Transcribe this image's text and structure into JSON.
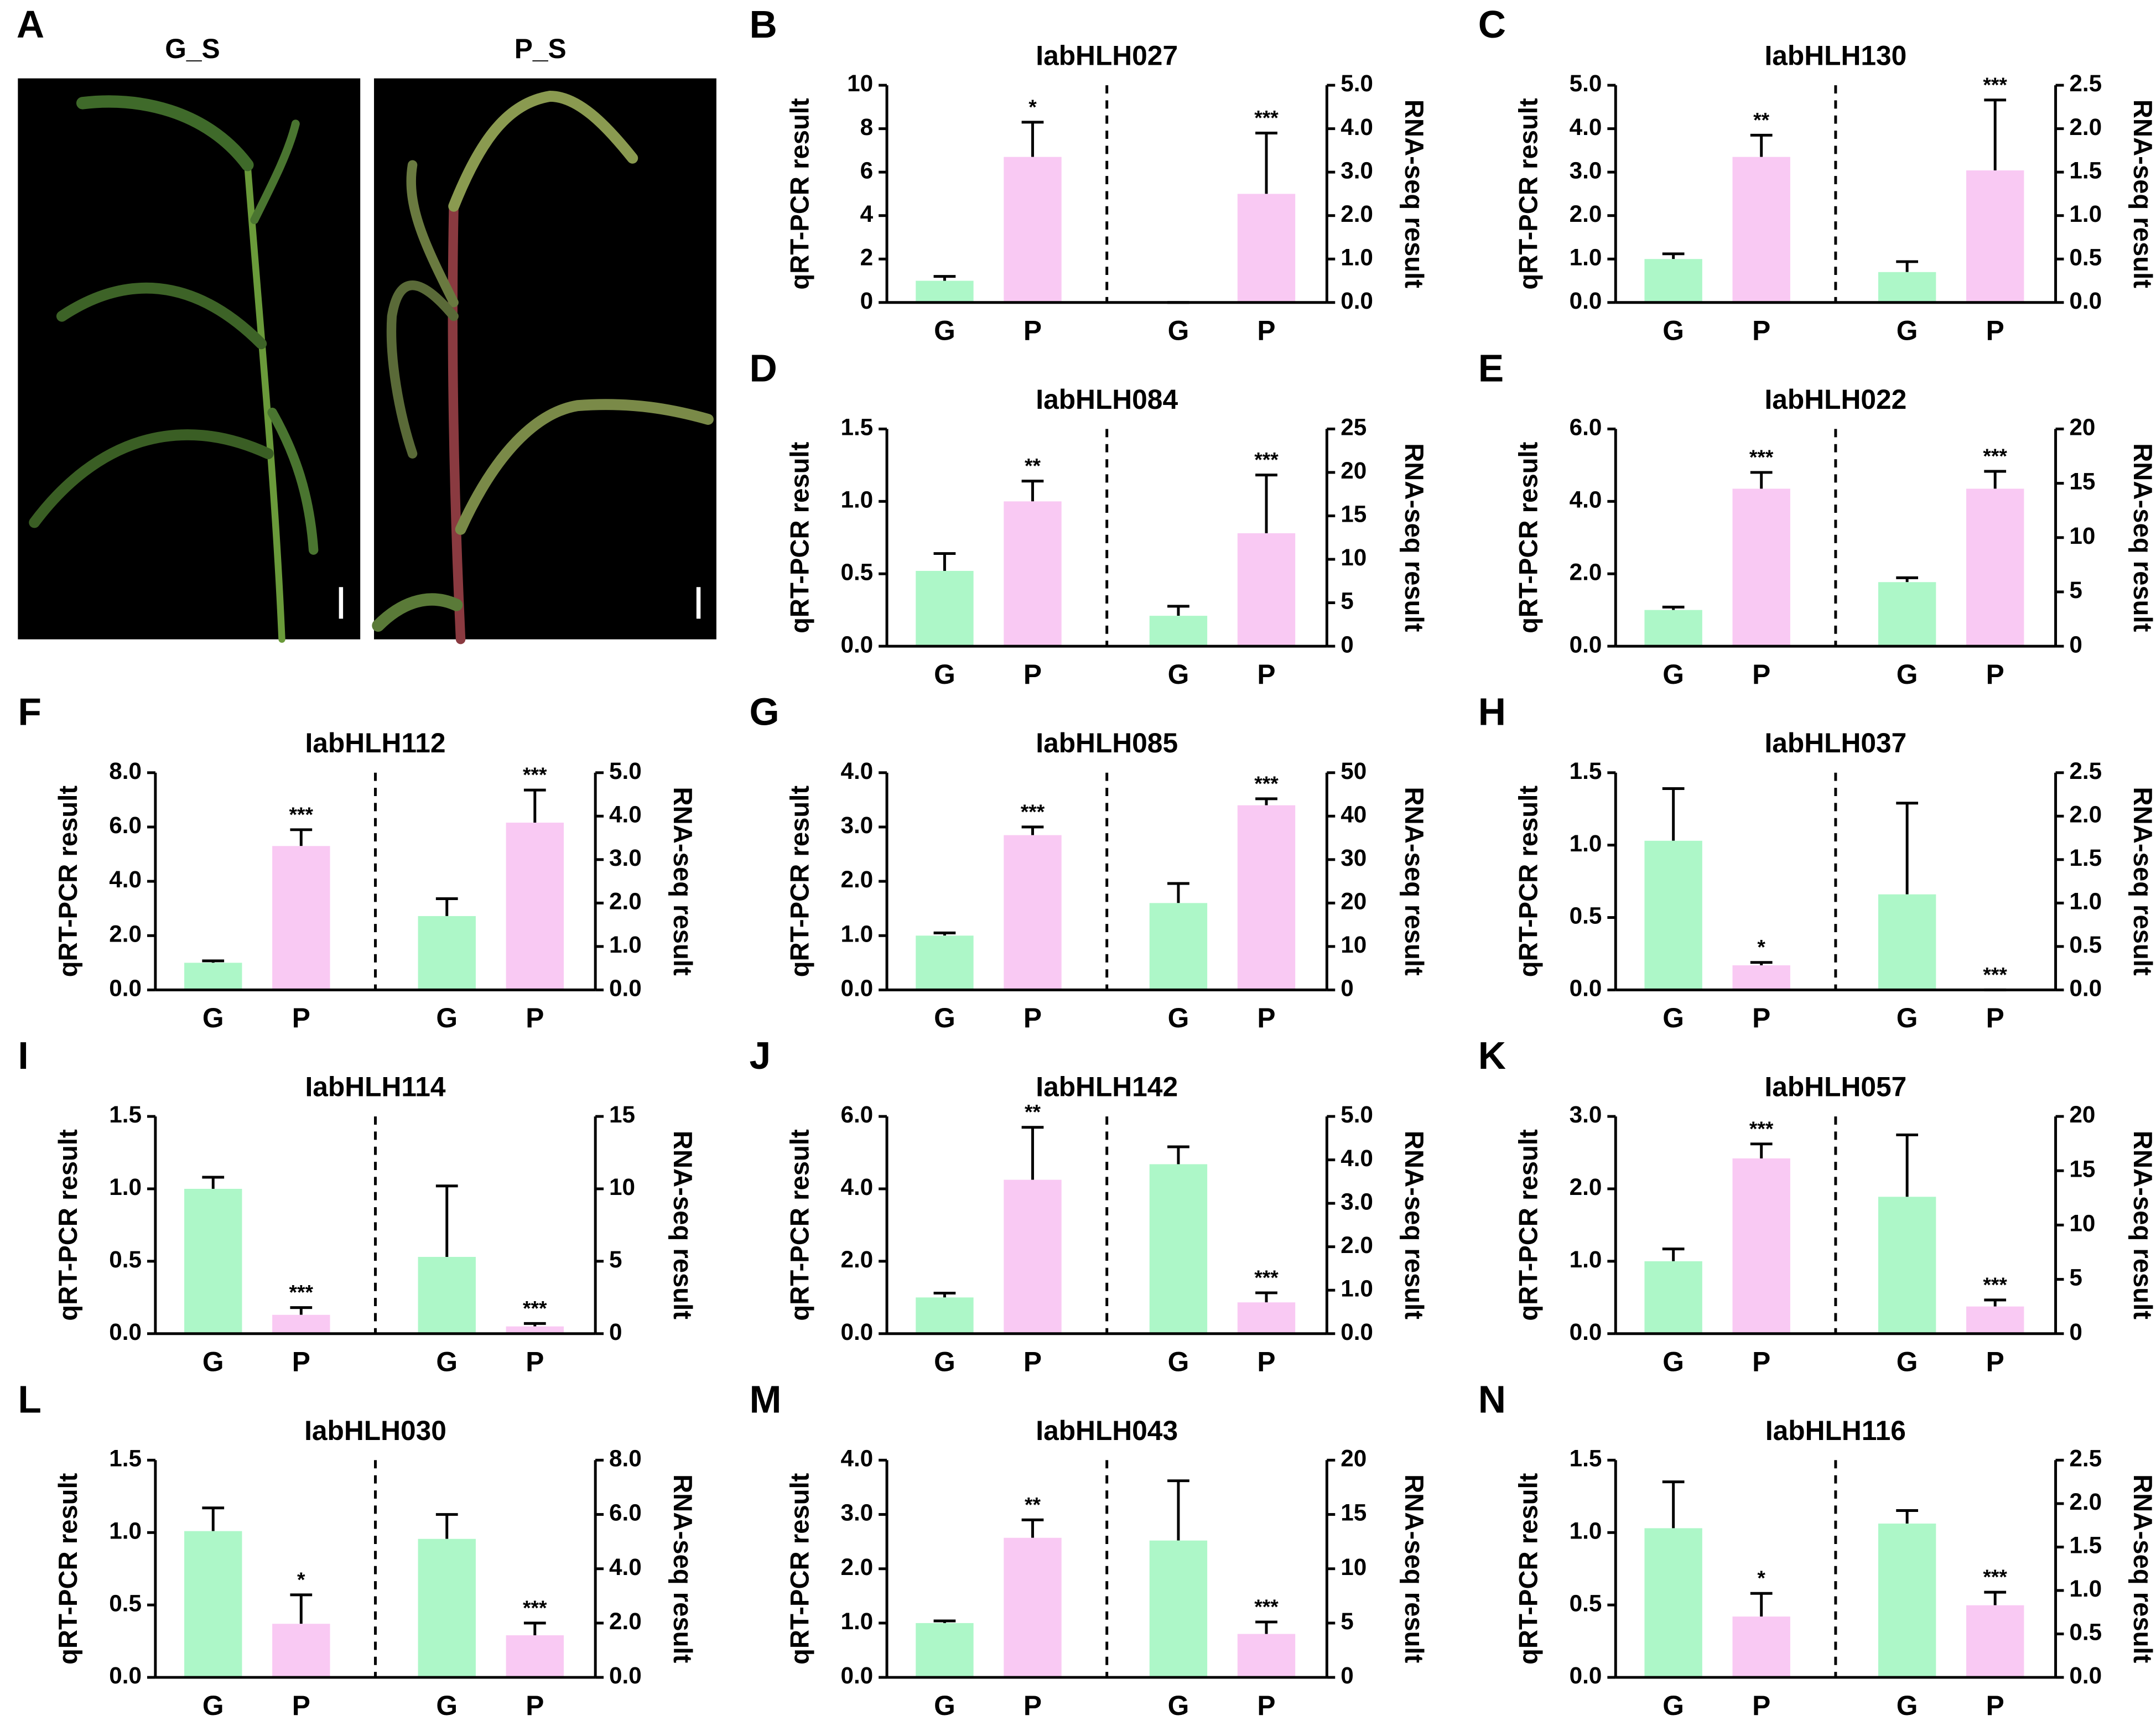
{
  "photo_panel": {
    "panel_label": "A",
    "labels": [
      "G_S",
      "P_S"
    ]
  },
  "chart_data": [
    {
      "type": "bar",
      "panel_label": "B",
      "title": "IabHLH027",
      "ylabel": "qRT-PCR result",
      "y2label": "RNA-seq result",
      "colors": [
        "#adf7c8",
        "#f9c9f3"
      ],
      "ylim": [
        0,
        10
      ],
      "yticks": [
        0,
        2,
        4,
        6,
        8,
        10
      ],
      "y2lim": [
        0,
        5
      ],
      "y2ticks": [
        {
          "value": 0,
          "label": "0.0"
        },
        {
          "value": 1,
          "label": "1.0"
        },
        {
          "value": 2,
          "label": "2.0"
        },
        {
          "value": 3,
          "label": "3.0"
        },
        {
          "value": 4,
          "label": "4.0"
        },
        {
          "value": 5,
          "label": "5.0"
        }
      ],
      "groups": [
        {
          "axis": "y",
          "categories": [
            "G",
            "P"
          ],
          "values": [
            1.0,
            6.7
          ],
          "errors": [
            0.2,
            1.6
          ],
          "annotations": [
            null,
            "*"
          ]
        },
        {
          "axis": "y2",
          "categories": [
            "G",
            "P"
          ],
          "values": [
            0,
            2.5
          ],
          "errors": [
            0,
            1.4
          ],
          "annotations": [
            null,
            "***"
          ]
        }
      ]
    },
    {
      "type": "bar",
      "panel_label": "C",
      "title": "IabHLH130",
      "ylabel": "qRT-PCR result",
      "y2label": "RNA-seq result",
      "colors": [
        "#adf7c8",
        "#f9c9f3"
      ],
      "ylim": [
        0,
        5
      ],
      "yticks": [
        {
          "value": 0,
          "label": "0.0"
        },
        {
          "value": 1,
          "label": "1.0"
        },
        {
          "value": 2,
          "label": "2.0"
        },
        {
          "value": 3,
          "label": "3.0"
        },
        {
          "value": 4,
          "label": "4.0"
        },
        {
          "value": 5,
          "label": "5.0"
        }
      ],
      "y2lim": [
        0,
        2.5
      ],
      "y2ticks": [
        {
          "value": 0,
          "label": "0.0"
        },
        0.5,
        {
          "value": 1,
          "label": "1.0"
        },
        1.5,
        {
          "value": 2,
          "label": "2.0"
        },
        2.5
      ],
      "groups": [
        {
          "axis": "y",
          "categories": [
            "G",
            "P"
          ],
          "values": [
            1.0,
            3.35
          ],
          "errors": [
            0.12,
            0.5
          ],
          "annotations": [
            null,
            "**"
          ]
        },
        {
          "axis": "y2",
          "categories": [
            "G",
            "P"
          ],
          "values": [
            0.35,
            1.52
          ],
          "errors": [
            0.12,
            0.81
          ],
          "annotations": [
            null,
            "***"
          ]
        }
      ]
    },
    {
      "type": "bar",
      "panel_label": "D",
      "title": "IabHLH084",
      "ylabel": "qRT-PCR result",
      "y2label": "RNA-seq result",
      "colors": [
        "#adf7c8",
        "#f9c9f3"
      ],
      "ylim": [
        0,
        1.5
      ],
      "yticks": [
        {
          "value": 0,
          "label": "0.0"
        },
        0.5,
        {
          "value": 1,
          "label": "1.0"
        },
        1.5
      ],
      "y2lim": [
        0,
        25
      ],
      "y2ticks": [
        0,
        5,
        10,
        15,
        20,
        25
      ],
      "groups": [
        {
          "axis": "y",
          "categories": [
            "G",
            "P"
          ],
          "values": [
            0.52,
            1.0
          ],
          "errors": [
            0.12,
            0.14
          ],
          "annotations": [
            null,
            "**"
          ]
        },
        {
          "axis": "y2",
          "categories": [
            "G",
            "P"
          ],
          "values": [
            3.5,
            13
          ],
          "errors": [
            1.1,
            6.7
          ],
          "annotations": [
            null,
            "***"
          ]
        }
      ]
    },
    {
      "type": "bar",
      "panel_label": "E",
      "title": "IabHLH022",
      "ylabel": "qRT-PCR result",
      "y2label": "RNA-seq result",
      "colors": [
        "#adf7c8",
        "#f9c9f3"
      ],
      "ylim": [
        0,
        6
      ],
      "yticks": [
        {
          "value": 0,
          "label": "0.0"
        },
        {
          "value": 2,
          "label": "2.0"
        },
        {
          "value": 4,
          "label": "4.0"
        },
        {
          "value": 6,
          "label": "6.0"
        }
      ],
      "y2lim": [
        0,
        20
      ],
      "y2ticks": [
        0,
        5,
        10,
        15,
        20
      ],
      "groups": [
        {
          "axis": "y",
          "categories": [
            "G",
            "P"
          ],
          "values": [
            1.0,
            4.35
          ],
          "errors": [
            0.08,
            0.45
          ],
          "annotations": [
            null,
            "***"
          ]
        },
        {
          "axis": "y2",
          "categories": [
            "G",
            "P"
          ],
          "values": [
            5.9,
            14.5
          ],
          "errors": [
            0.4,
            1.6
          ],
          "annotations": [
            null,
            "***"
          ]
        }
      ]
    },
    {
      "type": "bar",
      "panel_label": "F",
      "title": "IabHLH112",
      "ylabel": "qRT-PCR result",
      "y2label": "RNA-seq result",
      "colors": [
        "#adf7c8",
        "#f9c9f3"
      ],
      "ylim": [
        0,
        8
      ],
      "yticks": [
        {
          "value": 0,
          "label": "0.0"
        },
        {
          "value": 2,
          "label": "2.0"
        },
        {
          "value": 4,
          "label": "4.0"
        },
        {
          "value": 6,
          "label": "6.0"
        },
        {
          "value": 8,
          "label": "8.0"
        }
      ],
      "y2lim": [
        0,
        5
      ],
      "y2ticks": [
        {
          "value": 0,
          "label": "0.0"
        },
        {
          "value": 1,
          "label": "1.0"
        },
        {
          "value": 2,
          "label": "2.0"
        },
        {
          "value": 3,
          "label": "3.0"
        },
        {
          "value": 4,
          "label": "4.0"
        },
        {
          "value": 5,
          "label": "5.0"
        }
      ],
      "groups": [
        {
          "axis": "y",
          "categories": [
            "G",
            "P"
          ],
          "values": [
            1.0,
            5.3
          ],
          "errors": [
            0.07,
            0.6
          ],
          "annotations": [
            null,
            "***"
          ]
        },
        {
          "axis": "y2",
          "categories": [
            "G",
            "P"
          ],
          "values": [
            1.7,
            3.85
          ],
          "errors": [
            0.4,
            0.75
          ],
          "annotations": [
            null,
            "***"
          ]
        }
      ]
    },
    {
      "type": "bar",
      "panel_label": "G",
      "title": "IabHLH085",
      "ylabel": "qRT-PCR result",
      "y2label": "RNA-seq result",
      "colors": [
        "#adf7c8",
        "#f9c9f3"
      ],
      "ylim": [
        0,
        4
      ],
      "yticks": [
        {
          "value": 0,
          "label": "0.0"
        },
        {
          "value": 1,
          "label": "1.0"
        },
        {
          "value": 2,
          "label": "2.0"
        },
        {
          "value": 3,
          "label": "3.0"
        },
        {
          "value": 4,
          "label": "4.0"
        }
      ],
      "y2lim": [
        0,
        50
      ],
      "y2ticks": [
        0,
        10,
        20,
        30,
        40,
        50
      ],
      "groups": [
        {
          "axis": "y",
          "categories": [
            "G",
            "P"
          ],
          "values": [
            1.0,
            2.85
          ],
          "errors": [
            0.05,
            0.15
          ],
          "annotations": [
            null,
            "***"
          ]
        },
        {
          "axis": "y2",
          "categories": [
            "G",
            "P"
          ],
          "values": [
            20,
            42.5
          ],
          "errors": [
            4.5,
            1.5
          ],
          "annotations": [
            null,
            "***"
          ]
        }
      ]
    },
    {
      "type": "bar",
      "panel_label": "H",
      "title": "IabHLH037",
      "ylabel": "qRT-PCR result",
      "y2label": "RNA-seq result",
      "colors": [
        "#adf7c8",
        "#f9c9f3"
      ],
      "ylim": [
        0,
        1.5
      ],
      "yticks": [
        {
          "value": 0,
          "label": "0.0"
        },
        0.5,
        {
          "value": 1,
          "label": "1.0"
        },
        1.5
      ],
      "y2lim": [
        0,
        2.5
      ],
      "y2ticks": [
        {
          "value": 0,
          "label": "0.0"
        },
        0.5,
        {
          "value": 1,
          "label": "1.0"
        },
        1.5,
        {
          "value": 2,
          "label": "2.0"
        },
        2.5
      ],
      "groups": [
        {
          "axis": "y",
          "categories": [
            "G",
            "P"
          ],
          "values": [
            1.03,
            0.17
          ],
          "errors": [
            0.36,
            0.02
          ],
          "annotations": [
            null,
            "*"
          ]
        },
        {
          "axis": "y2",
          "categories": [
            "G",
            "P"
          ],
          "values": [
            1.1,
            0
          ],
          "errors": [
            1.05,
            0
          ],
          "annotations": [
            null,
            "***"
          ]
        }
      ]
    },
    {
      "type": "bar",
      "panel_label": "I",
      "title": "IabHLH114",
      "ylabel": "qRT-PCR result",
      "y2label": "RNA-seq result",
      "colors": [
        "#adf7c8",
        "#f9c9f3"
      ],
      "ylim": [
        0,
        1.5
      ],
      "yticks": [
        {
          "value": 0,
          "label": "0.0"
        },
        0.5,
        {
          "value": 1,
          "label": "1.0"
        },
        1.5
      ],
      "y2lim": [
        0,
        15
      ],
      "y2ticks": [
        0,
        5,
        10,
        15
      ],
      "groups": [
        {
          "axis": "y",
          "categories": [
            "G",
            "P"
          ],
          "values": [
            1.0,
            0.13
          ],
          "errors": [
            0.08,
            0.05
          ],
          "annotations": [
            null,
            "***"
          ]
        },
        {
          "axis": "y2",
          "categories": [
            "G",
            "P"
          ],
          "values": [
            5.3,
            0.5
          ],
          "errors": [
            4.9,
            0.2
          ],
          "annotations": [
            null,
            "***"
          ]
        }
      ]
    },
    {
      "type": "bar",
      "panel_label": "J",
      "title": "IabHLH142",
      "ylabel": "qRT-PCR result",
      "y2label": "RNA-seq result",
      "colors": [
        "#adf7c8",
        "#f9c9f3"
      ],
      "ylim": [
        0,
        6
      ],
      "yticks": [
        {
          "value": 0,
          "label": "0.0"
        },
        {
          "value": 2,
          "label": "2.0"
        },
        {
          "value": 4,
          "label": "4.0"
        },
        {
          "value": 6,
          "label": "6.0"
        }
      ],
      "y2lim": [
        0,
        5
      ],
      "y2ticks": [
        {
          "value": 0,
          "label": "0.0"
        },
        {
          "value": 1,
          "label": "1.0"
        },
        {
          "value": 2,
          "label": "2.0"
        },
        {
          "value": 3,
          "label": "3.0"
        },
        {
          "value": 4,
          "label": "4.0"
        },
        {
          "value": 5,
          "label": "5.0"
        }
      ],
      "groups": [
        {
          "axis": "y",
          "categories": [
            "G",
            "P"
          ],
          "values": [
            1.0,
            4.25
          ],
          "errors": [
            0.12,
            1.45
          ],
          "annotations": [
            null,
            "**"
          ]
        },
        {
          "axis": "y2",
          "categories": [
            "G",
            "P"
          ],
          "values": [
            3.9,
            0.72
          ],
          "errors": [
            0.4,
            0.22
          ],
          "annotations": [
            null,
            "***"
          ]
        }
      ]
    },
    {
      "type": "bar",
      "panel_label": "K",
      "title": "IabHLH057",
      "ylabel": "qRT-PCR result",
      "y2label": "RNA-seq result",
      "colors": [
        "#adf7c8",
        "#f9c9f3"
      ],
      "ylim": [
        0,
        3
      ],
      "yticks": [
        {
          "value": 0,
          "label": "0.0"
        },
        {
          "value": 1,
          "label": "1.0"
        },
        {
          "value": 2,
          "label": "2.0"
        },
        {
          "value": 3,
          "label": "3.0"
        }
      ],
      "y2lim": [
        0,
        20
      ],
      "y2ticks": [
        0,
        5,
        10,
        15,
        20
      ],
      "groups": [
        {
          "axis": "y",
          "categories": [
            "G",
            "P"
          ],
          "values": [
            1.0,
            2.42
          ],
          "errors": [
            0.17,
            0.2
          ],
          "annotations": [
            null,
            "***"
          ]
        },
        {
          "axis": "y2",
          "categories": [
            "G",
            "P"
          ],
          "values": [
            12.6,
            2.5
          ],
          "errors": [
            5.7,
            0.6
          ],
          "annotations": [
            null,
            "***"
          ]
        }
      ]
    },
    {
      "type": "bar",
      "panel_label": "L",
      "title": "IabHLH030",
      "ylabel": "qRT-PCR result",
      "y2label": "RNA-seq result",
      "colors": [
        "#adf7c8",
        "#f9c9f3"
      ],
      "ylim": [
        0,
        1.5
      ],
      "yticks": [
        {
          "value": 0,
          "label": "0.0"
        },
        0.5,
        {
          "value": 1,
          "label": "1.0"
        },
        1.5
      ],
      "y2lim": [
        0,
        8
      ],
      "y2ticks": [
        {
          "value": 0,
          "label": "0.0"
        },
        {
          "value": 2,
          "label": "2.0"
        },
        {
          "value": 4,
          "label": "4.0"
        },
        {
          "value": 6,
          "label": "6.0"
        },
        {
          "value": 8,
          "label": "8.0"
        }
      ],
      "groups": [
        {
          "axis": "y",
          "categories": [
            "G",
            "P"
          ],
          "values": [
            1.01,
            0.37
          ],
          "errors": [
            0.16,
            0.2
          ],
          "annotations": [
            null,
            "*"
          ]
        },
        {
          "axis": "y2",
          "categories": [
            "G",
            "P"
          ],
          "values": [
            5.1,
            1.55
          ],
          "errors": [
            0.9,
            0.45
          ],
          "annotations": [
            null,
            "***"
          ]
        }
      ]
    },
    {
      "type": "bar",
      "panel_label": "M",
      "title": "IabHLH043",
      "ylabel": "qRT-PCR result",
      "y2label": "RNA-seq result",
      "colors": [
        "#adf7c8",
        "#f9c9f3"
      ],
      "ylim": [
        0,
        4
      ],
      "yticks": [
        {
          "value": 0,
          "label": "0.0"
        },
        {
          "value": 1,
          "label": "1.0"
        },
        {
          "value": 2,
          "label": "2.0"
        },
        {
          "value": 3,
          "label": "3.0"
        },
        {
          "value": 4,
          "label": "4.0"
        }
      ],
      "y2lim": [
        0,
        20
      ],
      "y2ticks": [
        0,
        5,
        10,
        15,
        20
      ],
      "groups": [
        {
          "axis": "y",
          "categories": [
            "G",
            "P"
          ],
          "values": [
            1.0,
            2.57
          ],
          "errors": [
            0.04,
            0.33
          ],
          "annotations": [
            null,
            "**"
          ]
        },
        {
          "axis": "y2",
          "categories": [
            "G",
            "P"
          ],
          "values": [
            12.6,
            4.0
          ],
          "errors": [
            5.5,
            1.1
          ],
          "annotations": [
            null,
            "***"
          ]
        }
      ]
    },
    {
      "type": "bar",
      "panel_label": "N",
      "title": "IabHLH116",
      "ylabel": "qRT-PCR result",
      "y2label": "RNA-seq result",
      "colors": [
        "#adf7c8",
        "#f9c9f3"
      ],
      "ylim": [
        0,
        1.5
      ],
      "yticks": [
        {
          "value": 0,
          "label": "0.0"
        },
        0.5,
        {
          "value": 1,
          "label": "1.0"
        },
        1.5
      ],
      "y2lim": [
        0,
        2.5
      ],
      "y2ticks": [
        {
          "value": 0,
          "label": "0.0"
        },
        0.5,
        {
          "value": 1,
          "label": "1.0"
        },
        1.5,
        {
          "value": 2,
          "label": "2.0"
        },
        2.5
      ],
      "groups": [
        {
          "axis": "y",
          "categories": [
            "G",
            "P"
          ],
          "values": [
            1.03,
            0.42
          ],
          "errors": [
            0.32,
            0.16
          ],
          "annotations": [
            null,
            "*"
          ]
        },
        {
          "axis": "y2",
          "categories": [
            "G",
            "P"
          ],
          "values": [
            1.77,
            0.83
          ],
          "errors": [
            0.15,
            0.15
          ],
          "annotations": [
            null,
            "***"
          ]
        }
      ]
    }
  ]
}
